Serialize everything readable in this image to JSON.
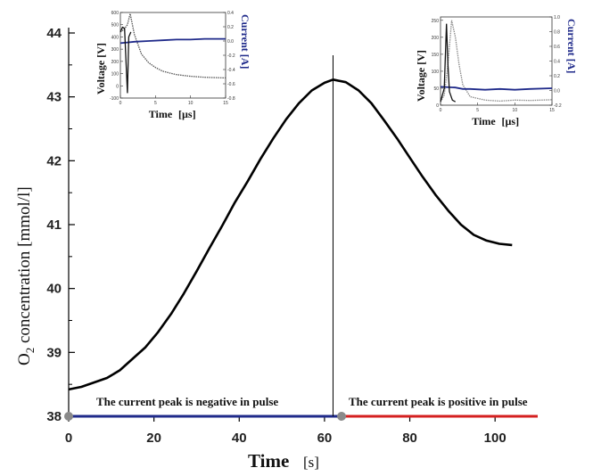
{
  "chart_data": [
    {
      "type": "line",
      "title": "",
      "xlabel": "Time",
      "xlabel_unit": "[s]",
      "ylabel": "O2 concentration [mmol/l]",
      "ylabel_main": "O",
      "ylabel_sub": "2",
      "ylabel_rest": " concentration [mmol/l]",
      "xlim": [
        0,
        110
      ],
      "ylim": [
        38,
        44
      ],
      "xticks": [
        "0",
        "20",
        "40",
        "60",
        "80",
        "100"
      ],
      "yticks": [
        "38",
        "39",
        "40",
        "41",
        "42",
        "43",
        "44"
      ],
      "grid": false,
      "series": [
        {
          "name": "",
          "color": "#000000",
          "x": [
            0,
            3,
            6,
            9,
            12,
            15,
            18,
            21,
            24,
            27,
            30,
            33,
            36,
            39,
            42,
            45,
            48,
            51,
            54,
            57,
            60,
            62,
            65,
            68,
            71,
            74,
            77,
            80,
            83,
            86,
            89,
            92,
            95,
            98,
            101,
            104
          ],
          "y": [
            38.42,
            38.46,
            38.53,
            38.6,
            38.72,
            38.9,
            39.08,
            39.32,
            39.6,
            39.92,
            40.27,
            40.63,
            40.98,
            41.35,
            41.68,
            42.03,
            42.35,
            42.65,
            42.9,
            43.1,
            43.22,
            43.27,
            43.23,
            43.1,
            42.9,
            42.63,
            42.35,
            42.05,
            41.75,
            41.47,
            41.22,
            41.0,
            40.84,
            40.75,
            40.7,
            40.68
          ]
        }
      ],
      "annotations": {
        "divider_x": 62,
        "negative_text": "The current peak is negative in pulse",
        "positive_text": "The current peak is positive in pulse",
        "negative_span": [
          0,
          64
        ],
        "positive_span": [
          64,
          110
        ],
        "negative_color": "#1f2a8a",
        "positive_color": "#d42020",
        "marker_color": "#8a8a8a"
      }
    },
    {
      "type": "line",
      "title": "",
      "xlabel": "Time",
      "xlabel_unit": "[µs]",
      "ylabel_left": "Voltage [V]",
      "ylabel_right": "Current [A]",
      "left_ticks": [
        "-100",
        "0",
        "100",
        "200",
        "300",
        "400",
        "500",
        "600"
      ],
      "right_ticks": [
        "-0.8",
        "-0.6",
        "-0.4",
        "-0.2",
        "0.0",
        "0.2",
        "0.4"
      ],
      "x_ticks": [
        "0",
        "5",
        "10",
        "15"
      ],
      "ylim_left": [
        -100,
        600
      ],
      "ylim_right": [
        -0.8,
        0.4
      ],
      "xlim": [
        0,
        15
      ],
      "series": [
        {
          "name": "",
          "axis": "left",
          "color": "#555555",
          "x": [
            0,
            0.5,
            1,
            1.4,
            2,
            3,
            4,
            5,
            6,
            7,
            8,
            10,
            12,
            15
          ],
          "y": [
            440,
            460,
            500,
            590,
            420,
            260,
            190,
            150,
            120,
            105,
            92,
            78,
            70,
            65
          ]
        },
        {
          "name": "",
          "axis": "right",
          "color": "#1f2a8a",
          "x": [
            0,
            1,
            2,
            4,
            6,
            8,
            10,
            12,
            15
          ],
          "y": [
            -0.03,
            -0.02,
            -0.01,
            0.0,
            0.01,
            0.02,
            0.02,
            0.03,
            0.03
          ]
        },
        {
          "name": "",
          "axis": "left",
          "color": "#111111",
          "x": [
            0,
            0.3,
            0.6,
            0.8,
            1.0,
            1.2,
            1.5
          ],
          "y": [
            440,
            480,
            470,
            200,
            -60,
            400,
            440
          ]
        }
      ]
    },
    {
      "type": "line",
      "title": "",
      "xlabel": "Time",
      "xlabel_unit": "[µs]",
      "ylabel_left": "Voltage [V]",
      "ylabel_right": "Current [A]",
      "left_ticks": [
        "0",
        "50",
        "100",
        "150",
        "200",
        "250"
      ],
      "right_ticks": [
        "-0.2",
        "0.0",
        "0.2",
        "0.4",
        "0.6",
        "0.8",
        "1.0"
      ],
      "x_ticks": [
        "0",
        "5",
        "10",
        "15"
      ],
      "ylim_left": [
        0,
        260
      ],
      "ylim_right": [
        -0.2,
        1.0
      ],
      "xlim": [
        0,
        15
      ],
      "series": [
        {
          "name": "",
          "axis": "left",
          "color": "#888888",
          "x": [
            0,
            0.5,
            1,
            1.5,
            2,
            2.5,
            3,
            4,
            6,
            8,
            10,
            12,
            15
          ],
          "y": [
            10,
            30,
            120,
            250,
            200,
            120,
            60,
            25,
            15,
            12,
            15,
            14,
            16
          ]
        },
        {
          "name": "",
          "axis": "right",
          "color": "#1f2a8a",
          "x": [
            0,
            2,
            3,
            4,
            6,
            8,
            10,
            12,
            15
          ],
          "y": [
            0.05,
            0.04,
            0.02,
            0.02,
            0.01,
            0.02,
            0.01,
            0.02,
            0.03
          ]
        },
        {
          "name": "",
          "axis": "left",
          "color": "#111111",
          "x": [
            0,
            0.5,
            0.8,
            1.0,
            1.2,
            1.6,
            2.0
          ],
          "y": [
            10,
            50,
            240,
            120,
            40,
            15,
            10
          ]
        }
      ]
    }
  ]
}
